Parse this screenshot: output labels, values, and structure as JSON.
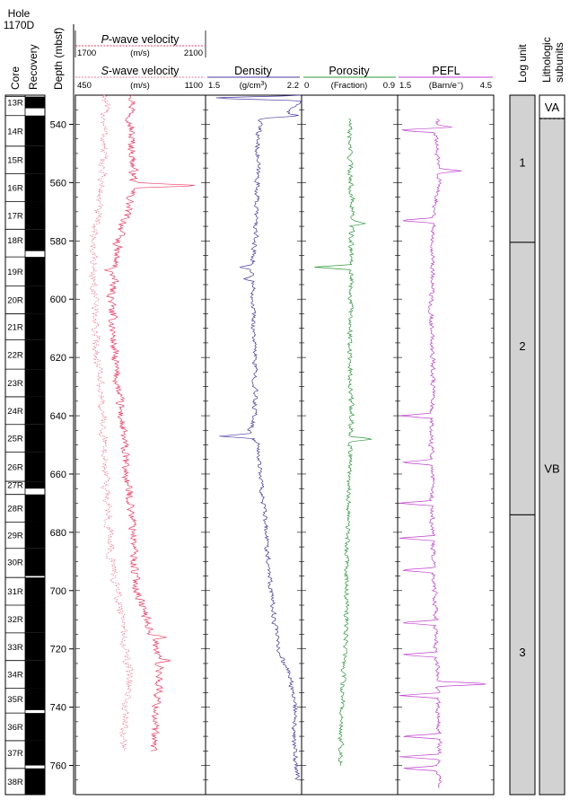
{
  "hole": {
    "line1": "Hole",
    "line2": "1170D"
  },
  "headers": {
    "core": "Core",
    "recovery": "Recovery",
    "depth": "Depth (mbsf)",
    "log_unit": "Log unit",
    "litho_line1": "Lithologic",
    "litho_line2": "subunits"
  },
  "colors": {
    "pwave": "#f03c64",
    "swave": "#f07890",
    "density": "#4a3aa0",
    "porosity": "#2e9a3c",
    "pefl": "#c040d0",
    "unit_fill": "#d2d2d2"
  },
  "chart_data": {
    "type": "line",
    "y_axis": {
      "label": "Depth (mbsf)",
      "range": [
        530,
        770
      ],
      "ticks": [
        540,
        560,
        580,
        600,
        620,
        640,
        660,
        680,
        700,
        720,
        740,
        760
      ],
      "inverted": true
    },
    "tracks": [
      {
        "id": "velocity",
        "series": [
          {
            "name": "P-wave velocity",
            "name_prefix": "P",
            "name_suffix": "-wave velocity",
            "unit": "(m/s)",
            "range": [
              1700,
              2100
            ],
            "min_label": "1700",
            "max_label": "2100",
            "profile": [
              [
                530,
                1880
              ],
              [
                540,
                1870
              ],
              [
                550,
                1875
              ],
              [
                560,
                1880
              ],
              [
                570,
                1860
              ],
              [
                580,
                1830
              ],
              [
                590,
                1820
              ],
              [
                600,
                1810
              ],
              [
                610,
                1815
              ],
              [
                620,
                1820
              ],
              [
                630,
                1830
              ],
              [
                640,
                1840
              ],
              [
                650,
                1850
              ],
              [
                660,
                1855
              ],
              [
                670,
                1870
              ],
              [
                680,
                1880
              ],
              [
                690,
                1880
              ],
              [
                700,
                1890
              ],
              [
                710,
                1920
              ],
              [
                720,
                1950
              ],
              [
                730,
                1960
              ],
              [
                740,
                1950
              ],
              [
                750,
                1940
              ],
              [
                755,
                1940
              ]
            ],
            "spikes": [
              [
                561,
                2090
              ],
              [
                590,
                1790
              ],
              [
                716,
                1980
              ],
              [
                724,
                1995
              ]
            ]
          },
          {
            "name": "S-wave velocity",
            "name_prefix": "S",
            "name_suffix": "-wave velocity",
            "unit": "(m/s)",
            "range": [
              450,
              1100
            ],
            "min_label": "450",
            "max_label": "1100",
            "profile": [
              [
                530,
                600
              ],
              [
                540,
                595
              ],
              [
                550,
                590
              ],
              [
                560,
                580
              ],
              [
                570,
                560
              ],
              [
                580,
                540
              ],
              [
                590,
                540
              ],
              [
                600,
                545
              ],
              [
                610,
                550
              ],
              [
                620,
                560
              ],
              [
                630,
                575
              ],
              [
                640,
                585
              ],
              [
                650,
                595
              ],
              [
                660,
                600
              ],
              [
                670,
                610
              ],
              [
                680,
                620
              ],
              [
                690,
                630
              ],
              [
                700,
                660
              ],
              [
                710,
                680
              ],
              [
                720,
                700
              ],
              [
                730,
                720
              ],
              [
                740,
                700
              ],
              [
                750,
                690
              ],
              [
                755,
                690
              ]
            ],
            "spikes": []
          }
        ]
      },
      {
        "id": "density",
        "series": [
          {
            "name": "Density",
            "unit_base": "(g/cm",
            "unit_sup": "3",
            "unit_close": ")",
            "range": [
              1.5,
              2.2
            ],
            "min_label": "1.5",
            "max_label": "2.2",
            "profile": [
              [
                530,
                2.2
              ],
              [
                532,
                2.19
              ],
              [
                536,
                2.1
              ],
              [
                538,
                1.9
              ],
              [
                545,
                1.88
              ],
              [
                560,
                1.88
              ],
              [
                570,
                1.87
              ],
              [
                580,
                1.86
              ],
              [
                590,
                1.84
              ],
              [
                600,
                1.85
              ],
              [
                610,
                1.85
              ],
              [
                620,
                1.86
              ],
              [
                630,
                1.86
              ],
              [
                640,
                1.86
              ],
              [
                646,
                1.82
              ],
              [
                650,
                1.88
              ],
              [
                660,
                1.9
              ],
              [
                670,
                1.92
              ],
              [
                680,
                1.94
              ],
              [
                690,
                1.96
              ],
              [
                700,
                1.98
              ],
              [
                710,
                2.0
              ],
              [
                720,
                2.03
              ],
              [
                730,
                2.12
              ],
              [
                740,
                2.15
              ],
              [
                750,
                2.14
              ],
              [
                760,
                2.16
              ],
              [
                765,
                2.17
              ]
            ],
            "spikes": [
              [
                531,
                1.5
              ],
              [
                537,
                2.2
              ],
              [
                589,
                1.74
              ],
              [
                593,
                1.78
              ],
              [
                647,
                1.6
              ]
            ]
          }
        ]
      },
      {
        "id": "porosity",
        "series": [
          {
            "name": "Porosity",
            "unit": "(Fraction)",
            "range": [
              0,
              0.9
            ],
            "min_label": "0",
            "max_label": "0.9",
            "profile": [
              [
                538,
                0.45
              ],
              [
                545,
                0.45
              ],
              [
                560,
                0.46
              ],
              [
                570,
                0.48
              ],
              [
                580,
                0.46
              ],
              [
                590,
                0.47
              ],
              [
                600,
                0.46
              ],
              [
                610,
                0.46
              ],
              [
                620,
                0.45
              ],
              [
                630,
                0.46
              ],
              [
                640,
                0.47
              ],
              [
                650,
                0.46
              ],
              [
                660,
                0.45
              ],
              [
                670,
                0.44
              ],
              [
                680,
                0.43
              ],
              [
                690,
                0.42
              ],
              [
                700,
                0.42
              ],
              [
                710,
                0.42
              ],
              [
                720,
                0.41
              ],
              [
                730,
                0.39
              ],
              [
                740,
                0.38
              ],
              [
                750,
                0.37
              ],
              [
                760,
                0.37
              ]
            ],
            "spikes": [
              [
                537,
                0.02
              ],
              [
                574,
                0.6
              ],
              [
                589,
                0.12
              ],
              [
                648,
                0.68
              ]
            ]
          }
        ]
      },
      {
        "id": "pefl",
        "series": [
          {
            "name": "PEFL",
            "unit_base": "(Barn/e",
            "unit_sup": "−",
            "unit_close": ")",
            "range": [
              1.5,
              4.5
            ],
            "min_label": "1.5",
            "max_label": "4.5",
            "profile": [
              [
                538,
                2.75
              ],
              [
                545,
                2.7
              ],
              [
                555,
                2.75
              ],
              [
                560,
                2.8
              ],
              [
                570,
                2.65
              ],
              [
                580,
                2.6
              ],
              [
                590,
                2.6
              ],
              [
                600,
                2.55
              ],
              [
                610,
                2.55
              ],
              [
                620,
                2.6
              ],
              [
                630,
                2.6
              ],
              [
                640,
                2.55
              ],
              [
                650,
                2.55
              ],
              [
                660,
                2.6
              ],
              [
                670,
                2.55
              ],
              [
                680,
                2.6
              ],
              [
                690,
                2.6
              ],
              [
                700,
                2.65
              ],
              [
                710,
                2.7
              ],
              [
                720,
                2.7
              ],
              [
                730,
                2.75
              ],
              [
                740,
                2.75
              ],
              [
                750,
                2.8
              ],
              [
                760,
                2.8
              ],
              [
                768,
                2.8
              ]
            ],
            "spikes": [
              [
                541,
                3.2
              ],
              [
                556,
                3.5
              ],
              [
                732,
                4.45
              ],
              [
                542,
                1.5
              ],
              [
                573,
                1.55
              ],
              [
                640,
                1.55
              ],
              [
                656,
                1.55
              ],
              [
                670,
                1.55
              ],
              [
                682,
                1.55
              ],
              [
                693,
                1.55
              ],
              [
                711,
                1.55
              ],
              [
                722,
                1.55
              ],
              [
                736,
                1.55
              ],
              [
                750,
                1.55
              ],
              [
                757,
                1.55
              ],
              [
                761,
                1.55
              ]
            ]
          }
        ]
      }
    ]
  },
  "cores": [
    {
      "label": "13R",
      "top": 530.5,
      "bottom": 534.5
    },
    {
      "label": "14R",
      "top": 537,
      "bottom": 547.5
    },
    {
      "label": "15R",
      "top": 547.5,
      "bottom": 557
    },
    {
      "label": "16R",
      "top": 557,
      "bottom": 566.5
    },
    {
      "label": "17R",
      "top": 566.5,
      "bottom": 576
    },
    {
      "label": "18R",
      "top": 576,
      "bottom": 583.5
    },
    {
      "label": "19R",
      "top": 585.5,
      "bottom": 595.5
    },
    {
      "label": "20R",
      "top": 595.5,
      "bottom": 605
    },
    {
      "label": "21R",
      "top": 605,
      "bottom": 614
    },
    {
      "label": "22R",
      "top": 614,
      "bottom": 624
    },
    {
      "label": "23R",
      "top": 624,
      "bottom": 633.5
    },
    {
      "label": "24R",
      "top": 633.5,
      "bottom": 643
    },
    {
      "label": "25R",
      "top": 643,
      "bottom": 652.5
    },
    {
      "label": "26R",
      "top": 652.5,
      "bottom": 662.5
    },
    {
      "label": "27R",
      "top": 662.5,
      "bottom": 665
    },
    {
      "label": "28R",
      "top": 667,
      "bottom": 676.5
    },
    {
      "label": "29R",
      "top": 676.5,
      "bottom": 685.5
    },
    {
      "label": "30R",
      "top": 685.5,
      "bottom": 695
    },
    {
      "label": "31R",
      "top": 695.5,
      "bottom": 705
    },
    {
      "label": "32R",
      "top": 705,
      "bottom": 714.5
    },
    {
      "label": "33R",
      "top": 714.5,
      "bottom": 724
    },
    {
      "label": "34R",
      "top": 724,
      "bottom": 733.5
    },
    {
      "label": "35R",
      "top": 733.5,
      "bottom": 741
    },
    {
      "label": "36R",
      "top": 742,
      "bottom": 751.5
    },
    {
      "label": "37R",
      "top": 751.5,
      "bottom": 760
    },
    {
      "label": "38R",
      "top": 761,
      "bottom": 770
    }
  ],
  "log_units": [
    {
      "label": "1",
      "top": 530,
      "bottom": 580.5
    },
    {
      "label": "2",
      "top": 580.5,
      "bottom": 674
    },
    {
      "label": "3",
      "top": 674,
      "bottom": 770
    }
  ],
  "litho_subunits": [
    {
      "label": "VA",
      "top": 530,
      "bottom": 538
    },
    {
      "label": "VB",
      "top": 538,
      "bottom": 770
    }
  ]
}
